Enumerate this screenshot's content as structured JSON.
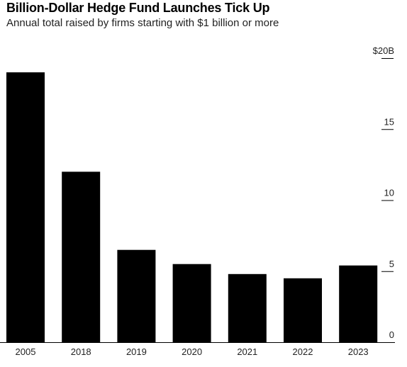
{
  "header": {
    "title": "Billion-Dollar Hedge Fund Launches Tick Up",
    "subtitle": "Annual total raised by firms starting with $1 billion or more"
  },
  "colors": {
    "bar": "#000000",
    "axis": "#000000",
    "background": "#ffffff"
  },
  "chart_data": {
    "type": "bar",
    "title": "Billion-Dollar Hedge Fund Launches Tick Up",
    "subtitle": "Annual total raised by firms starting with $1 billion or more",
    "categories": [
      "2005",
      "2018",
      "2019",
      "2020",
      "2021",
      "2022",
      "2023"
    ],
    "values": [
      19.0,
      12.0,
      6.5,
      5.5,
      4.8,
      4.5,
      5.4
    ],
    "ylim": [
      0,
      20
    ],
    "yticks": [
      0,
      5,
      10,
      15,
      20
    ],
    "ytick_labels": [
      "0",
      "5",
      "10",
      "15",
      "$20B"
    ],
    "y_axis_side": "right",
    "grid": false,
    "legend": "none"
  }
}
